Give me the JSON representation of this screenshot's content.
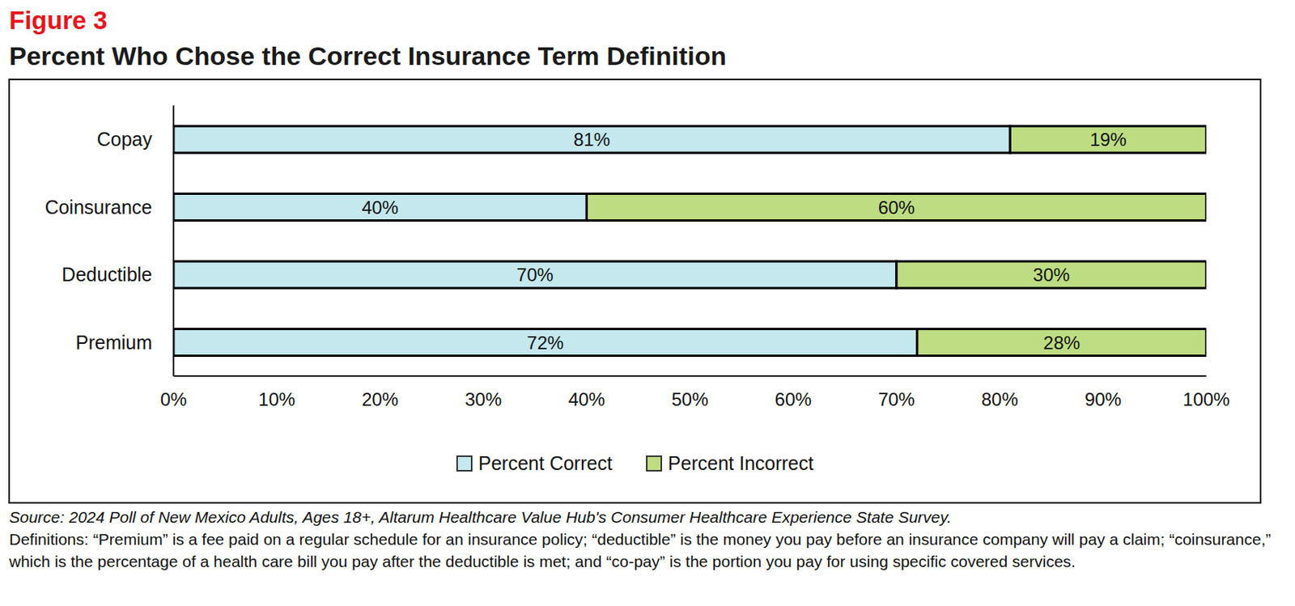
{
  "chart_data": {
    "type": "bar",
    "figure_label": "Figure 3",
    "title": "Percent Who Chose the Correct Insurance Term Definition",
    "orientation": "horizontal",
    "stacked": true,
    "data_labels": true,
    "legend": "bottom",
    "grid": false,
    "categories": [
      "Copay",
      "Coinsurance",
      "Deductible",
      "Premium"
    ],
    "series": [
      {
        "name": "Percent Correct",
        "color": "#c5e8ef",
        "values": [
          81,
          40,
          70,
          72
        ],
        "value_labels": [
          "81%",
          "40%",
          "70%",
          "72%"
        ]
      },
      {
        "name": "Percent Incorrect",
        "color": "#bedd82",
        "values": [
          19,
          60,
          30,
          28
        ],
        "value_labels": [
          "19%",
          "60%",
          "30%",
          "28%"
        ]
      }
    ],
    "xlim": [
      0,
      100
    ],
    "xticks": [
      {
        "value": 0,
        "label": "0%"
      },
      {
        "value": 10,
        "label": "10%"
      },
      {
        "value": 20,
        "label": "20%"
      },
      {
        "value": 30,
        "label": "30%"
      },
      {
        "value": 40,
        "label": "40%"
      },
      {
        "value": 50,
        "label": "50%"
      },
      {
        "value": 60,
        "label": "60%"
      },
      {
        "value": 70,
        "label": "70%"
      },
      {
        "value": 80,
        "label": "80%"
      },
      {
        "value": 90,
        "label": "90%"
      },
      {
        "value": 100,
        "label": "100%"
      }
    ],
    "source": "Source: 2024 Poll of New Mexico Adults, Ages 18+, Altarum Healthcare Value Hub's Consumer Healthcare Experience State Survey.",
    "definitions": "Definitions: “Premium” is a fee paid on a regular schedule for an insurance policy; “deductible” is the money you pay before an insurance company will pay a claim; “coinsurance,” which is the percentage of a health care bill you pay after the deductible is met; and “co-pay” is the portion you pay for using specific covered services."
  }
}
